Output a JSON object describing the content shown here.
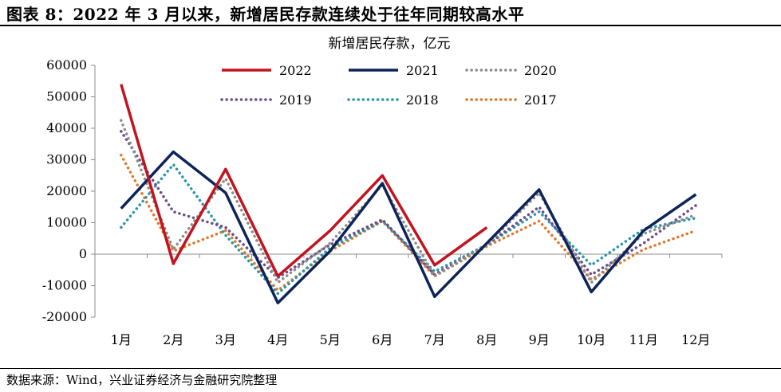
{
  "figure": {
    "title": "图表 8：2022 年 3 月以来，新增居民存款连续处于往年同期较高水平",
    "source": "数据来源：Wind，兴业证券经济与金融研究院整理"
  },
  "chart_data": {
    "type": "line",
    "title": "新增居民存款，亿元",
    "xlabel": "",
    "ylabel": "",
    "categories": [
      "1月",
      "2月",
      "3月",
      "4月",
      "5月",
      "6月",
      "7月",
      "8月",
      "9月",
      "10月",
      "11月",
      "12月"
    ],
    "ylim": [
      -20000,
      60000
    ],
    "yticks": [
      60000,
      50000,
      40000,
      30000,
      20000,
      10000,
      0,
      -10000,
      -20000
    ],
    "grid": false,
    "legend_position": "top",
    "series": [
      {
        "name": "2022",
        "color": "#C0141E",
        "style": "solid",
        "values": [
          54000,
          -3000,
          27000,
          -7000,
          7500,
          25000,
          -3500,
          8500,
          null,
          null,
          null,
          null
        ]
      },
      {
        "name": "2021",
        "color": "#0C2459",
        "style": "solid",
        "values": [
          14500,
          32500,
          19500,
          -15500,
          1000,
          22500,
          -13500,
          3500,
          20500,
          -12000,
          7500,
          19000
        ]
      },
      {
        "name": "2020",
        "color": "#8C8C8C",
        "style": "dotted",
        "values": [
          42500,
          1500,
          24000,
          -9000,
          3500,
          22000,
          -7000,
          3000,
          19500,
          -9000,
          6500,
          12500
        ]
      },
      {
        "name": "2019",
        "color": "#6B4C8C",
        "style": "dotted",
        "values": [
          39000,
          13500,
          8500,
          -7500,
          3000,
          11000,
          -6500,
          3000,
          15000,
          -6500,
          3500,
          15500
        ]
      },
      {
        "name": "2018",
        "color": "#2A98A4",
        "style": "dotted",
        "values": [
          8500,
          28500,
          6000,
          -12500,
          2000,
          10500,
          -5500,
          3000,
          13500,
          -3500,
          8000,
          11500
        ]
      },
      {
        "name": "2017",
        "color": "#E0782A",
        "style": "dotted",
        "values": [
          31500,
          1000,
          7500,
          -11500,
          1000,
          10500,
          -7000,
          2500,
          10500,
          -8000,
          1500,
          7500
        ]
      }
    ]
  }
}
